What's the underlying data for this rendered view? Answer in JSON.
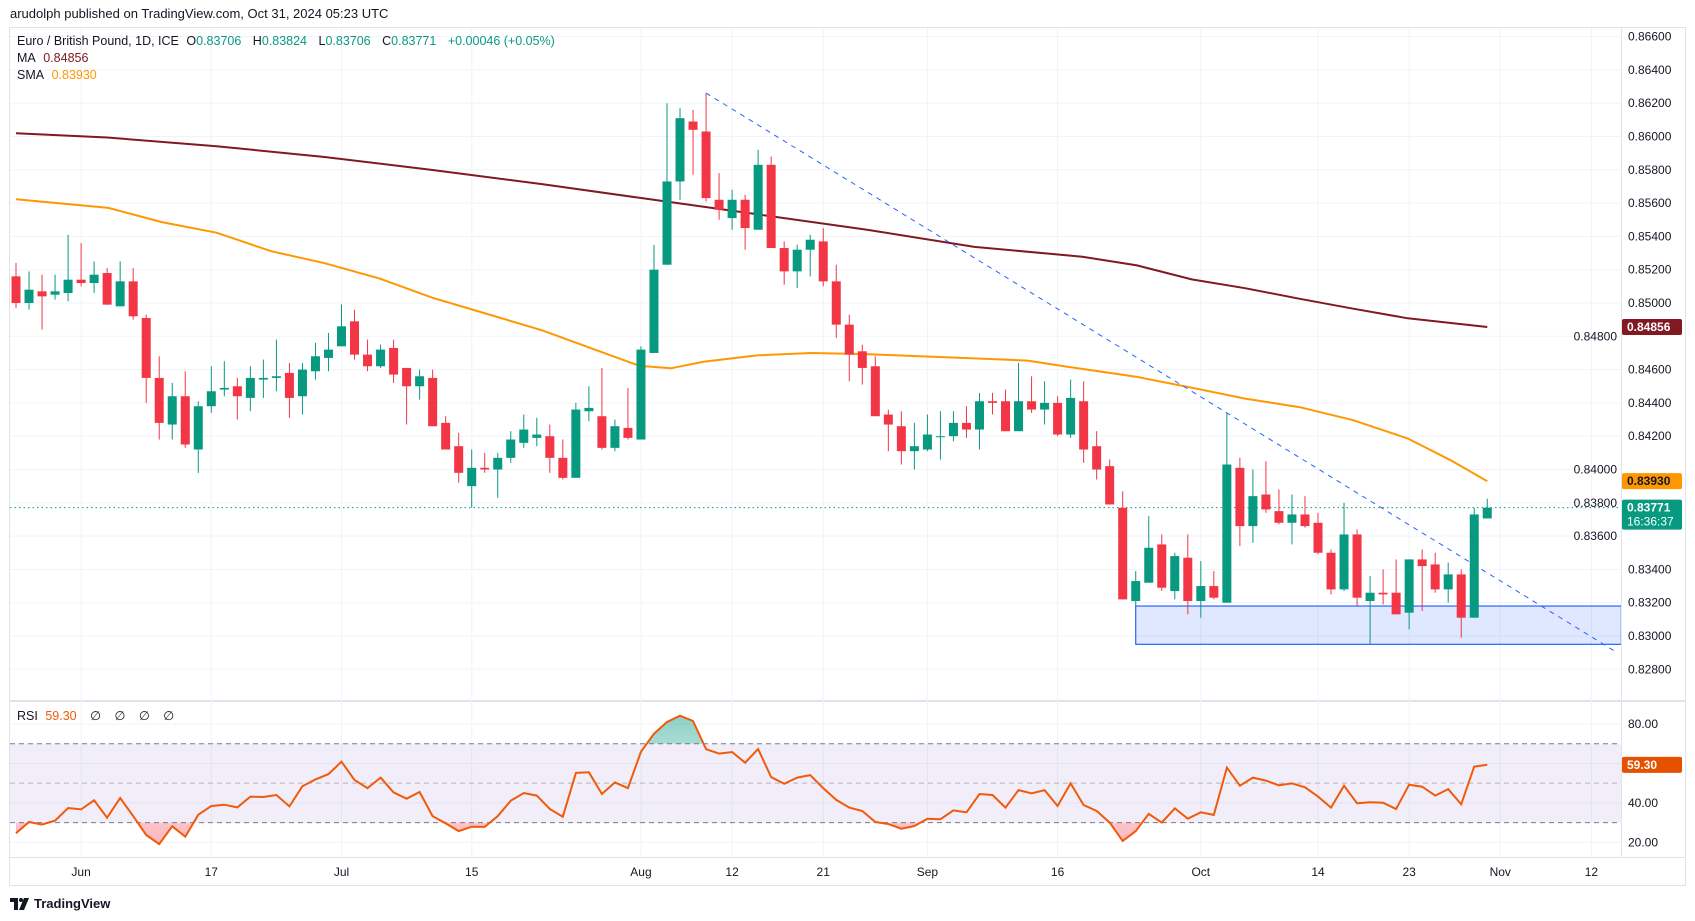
{
  "publish_line": "arudolph published on TradingView.com, Oct 31, 2024 05:23 UTC",
  "legend": {
    "symbol": "Euro / British Pound, 1D, ICE",
    "open_label": "O",
    "open": "0.83706",
    "high_label": "H",
    "high": "0.83824",
    "low_label": "L",
    "low": "0.83706",
    "close_label": "C",
    "close": "0.83771",
    "change": "+0.00046 (+0.05%)",
    "ma_label": "MA",
    "ma_value": "0.84856",
    "sma_label": "SMA",
    "sma_value": "0.83930"
  },
  "rsi_legend": {
    "label": "RSI",
    "value": "59.30",
    "na": [
      "∅",
      "∅",
      "∅",
      "∅"
    ]
  },
  "price_tags": {
    "ma": "0.84856",
    "sma": "0.83930",
    "last": "0.83771",
    "countdown": "16:36:37",
    "rsi": "59.30"
  },
  "logo_text": "TradingView",
  "colors": {
    "up": "#089981",
    "down": "#F23645",
    "ma": "#801922",
    "sma": "#FF9800",
    "rsi": "#F05A0A",
    "drawing": "#2962FF"
  },
  "chart_data": {
    "type": "candlestick",
    "symbol": "EURGBP",
    "interval": "1D",
    "price_axis": {
      "range": [
        0.826,
        0.867
      ],
      "ticks": [
        "0.82800",
        "0.83000",
        "0.83200",
        "0.83400",
        "0.83600",
        "0.83800",
        "0.84000",
        "0.84200",
        "0.84400",
        "0.84600",
        "0.84800",
        "0.85000",
        "0.85200",
        "0.85400",
        "0.85600",
        "0.85800",
        "0.86000",
        "0.86200",
        "0.86400",
        "0.86600"
      ]
    },
    "x_ticks": [
      {
        "label": "Jun",
        "index": 5
      },
      {
        "label": "17",
        "index": 15
      },
      {
        "label": "Jul",
        "index": 25
      },
      {
        "label": "15",
        "index": 35
      },
      {
        "label": "Aug",
        "index": 48
      },
      {
        "label": "12",
        "index": 55
      },
      {
        "label": "21",
        "index": 62
      },
      {
        "label": "Sep",
        "index": 70
      },
      {
        "label": "16",
        "index": 80
      },
      {
        "label": "Oct",
        "index": 91
      },
      {
        "label": "14",
        "index": 100
      },
      {
        "label": "23",
        "index": 107
      },
      {
        "label": "Nov",
        "index": 114
      },
      {
        "label": "12",
        "index": 121
      }
    ],
    "ohlc": [
      [
        0.8516,
        0.8524,
        0.8497,
        0.85
      ],
      [
        0.85,
        0.8519,
        0.8496,
        0.8508
      ],
      [
        0.8507,
        0.8517,
        0.8484,
        0.8504
      ],
      [
        0.8505,
        0.8517,
        0.8502,
        0.8507
      ],
      [
        0.8506,
        0.8541,
        0.8501,
        0.8514
      ],
      [
        0.8514,
        0.8536,
        0.851,
        0.8512
      ],
      [
        0.8512,
        0.8525,
        0.8506,
        0.8517
      ],
      [
        0.8518,
        0.8521,
        0.8499,
        0.8499
      ],
      [
        0.8498,
        0.8525,
        0.8498,
        0.8513
      ],
      [
        0.8513,
        0.8521,
        0.849,
        0.8492
      ],
      [
        0.8491,
        0.8493,
        0.844,
        0.8455
      ],
      [
        0.8455,
        0.8468,
        0.8418,
        0.8428
      ],
      [
        0.8427,
        0.8452,
        0.8418,
        0.8444
      ],
      [
        0.8444,
        0.8459,
        0.8413,
        0.8415
      ],
      [
        0.8412,
        0.8441,
        0.8398,
        0.8438
      ],
      [
        0.8438,
        0.8462,
        0.8434,
        0.8447
      ],
      [
        0.8448,
        0.8465,
        0.8444,
        0.8449
      ],
      [
        0.845,
        0.8455,
        0.843,
        0.8444
      ],
      [
        0.8443,
        0.8462,
        0.8435,
        0.8455
      ],
      [
        0.8454,
        0.8466,
        0.8443,
        0.8455
      ],
      [
        0.8455,
        0.8478,
        0.8447,
        0.8456
      ],
      [
        0.8458,
        0.8464,
        0.8431,
        0.8443
      ],
      [
        0.8444,
        0.8464,
        0.8433,
        0.846
      ],
      [
        0.8459,
        0.8476,
        0.8454,
        0.8468
      ],
      [
        0.8467,
        0.8482,
        0.8459,
        0.8472
      ],
      [
        0.8474,
        0.8499,
        0.8474,
        0.8486
      ],
      [
        0.8489,
        0.8496,
        0.8466,
        0.8469
      ],
      [
        0.8469,
        0.8478,
        0.8459,
        0.8462
      ],
      [
        0.8462,
        0.8475,
        0.8461,
        0.8472
      ],
      [
        0.8473,
        0.8478,
        0.8452,
        0.8457
      ],
      [
        0.8461,
        0.8461,
        0.8427,
        0.845
      ],
      [
        0.845,
        0.846,
        0.8442,
        0.8456
      ],
      [
        0.8455,
        0.846,
        0.8426,
        0.8426
      ],
      [
        0.8428,
        0.8432,
        0.8412,
        0.8412
      ],
      [
        0.8414,
        0.8422,
        0.8392,
        0.8398
      ],
      [
        0.839,
        0.8412,
        0.8377,
        0.8401
      ],
      [
        0.8401,
        0.841,
        0.8398,
        0.84
      ],
      [
        0.84,
        0.841,
        0.8383,
        0.8407
      ],
      [
        0.8407,
        0.8423,
        0.8404,
        0.8418
      ],
      [
        0.8416,
        0.8433,
        0.8413,
        0.8424
      ],
      [
        0.8419,
        0.8431,
        0.8414,
        0.8421
      ],
      [
        0.842,
        0.8427,
        0.8398,
        0.8407
      ],
      [
        0.8407,
        0.8418,
        0.8394,
        0.8395
      ],
      [
        0.8395,
        0.844,
        0.8395,
        0.8436
      ],
      [
        0.8435,
        0.845,
        0.8429,
        0.8437
      ],
      [
        0.8432,
        0.8461,
        0.8412,
        0.8413
      ],
      [
        0.8413,
        0.843,
        0.8411,
        0.8426
      ],
      [
        0.8425,
        0.8449,
        0.8418,
        0.8419
      ],
      [
        0.8418,
        0.8474,
        0.8418,
        0.8472
      ],
      [
        0.847,
        0.8535,
        0.847,
        0.852
      ],
      [
        0.8523,
        0.862,
        0.8523,
        0.8573
      ],
      [
        0.8573,
        0.8617,
        0.8562,
        0.8611
      ],
      [
        0.8609,
        0.8616,
        0.8577,
        0.8604
      ],
      [
        0.8603,
        0.8626,
        0.8561,
        0.8563
      ],
      [
        0.8562,
        0.8578,
        0.855,
        0.8556
      ],
      [
        0.8551,
        0.8568,
        0.8544,
        0.8562
      ],
      [
        0.8562,
        0.8565,
        0.8532,
        0.8545
      ],
      [
        0.8544,
        0.8592,
        0.8544,
        0.8583
      ],
      [
        0.8583,
        0.8588,
        0.8533,
        0.8533
      ],
      [
        0.8533,
        0.8537,
        0.8511,
        0.8519
      ],
      [
        0.8519,
        0.8535,
        0.8509,
        0.8532
      ],
      [
        0.8532,
        0.8541,
        0.8516,
        0.8538
      ],
      [
        0.8537,
        0.8545,
        0.851,
        0.8513
      ],
      [
        0.8513,
        0.8523,
        0.8479,
        0.8487
      ],
      [
        0.8487,
        0.8493,
        0.8453,
        0.8469
      ],
      [
        0.8471,
        0.8475,
        0.8451,
        0.8461
      ],
      [
        0.8462,
        0.8468,
        0.8432,
        0.8432
      ],
      [
        0.8433,
        0.8436,
        0.8411,
        0.8427
      ],
      [
        0.8426,
        0.8435,
        0.8403,
        0.8411
      ],
      [
        0.8411,
        0.8428,
        0.84,
        0.8414
      ],
      [
        0.8412,
        0.8433,
        0.8411,
        0.8421
      ],
      [
        0.842,
        0.8435,
        0.8406,
        0.842
      ],
      [
        0.842,
        0.8435,
        0.8417,
        0.8428
      ],
      [
        0.8428,
        0.8438,
        0.8419,
        0.8424
      ],
      [
        0.8424,
        0.8446,
        0.8412,
        0.8441
      ],
      [
        0.8441,
        0.8446,
        0.8433,
        0.844
      ],
      [
        0.8441,
        0.8448,
        0.8423,
        0.8423
      ],
      [
        0.8423,
        0.8464,
        0.8423,
        0.8441
      ],
      [
        0.8441,
        0.8456,
        0.8434,
        0.8436
      ],
      [
        0.8436,
        0.8453,
        0.8427,
        0.844
      ],
      [
        0.844,
        0.8444,
        0.842,
        0.8421
      ],
      [
        0.8421,
        0.8454,
        0.8419,
        0.8443
      ],
      [
        0.8441,
        0.8453,
        0.8404,
        0.8412
      ],
      [
        0.8414,
        0.8423,
        0.8394,
        0.84
      ],
      [
        0.8402,
        0.8406,
        0.8379,
        0.8379
      ],
      [
        0.8377,
        0.8387,
        0.8322,
        0.8322
      ],
      [
        0.8321,
        0.8339,
        0.8318,
        0.8333
      ],
      [
        0.8332,
        0.8372,
        0.8332,
        0.8353
      ],
      [
        0.8355,
        0.8361,
        0.8327,
        0.8329
      ],
      [
        0.8327,
        0.835,
        0.8322,
        0.8348
      ],
      [
        0.8347,
        0.8361,
        0.8313,
        0.8321
      ],
      [
        0.8321,
        0.8345,
        0.8311,
        0.833
      ],
      [
        0.833,
        0.8339,
        0.8322,
        0.8323
      ],
      [
        0.832,
        0.8434,
        0.832,
        0.8403
      ],
      [
        0.8401,
        0.8407,
        0.8354,
        0.8366
      ],
      [
        0.8366,
        0.84,
        0.8356,
        0.8384
      ],
      [
        0.8385,
        0.8405,
        0.8374,
        0.8376
      ],
      [
        0.8375,
        0.8388,
        0.8367,
        0.8368
      ],
      [
        0.8368,
        0.8385,
        0.8355,
        0.8373
      ],
      [
        0.8373,
        0.8384,
        0.8365,
        0.8366
      ],
      [
        0.8368,
        0.8374,
        0.8349,
        0.835
      ],
      [
        0.835,
        0.8352,
        0.8325,
        0.8328
      ],
      [
        0.8328,
        0.838,
        0.8327,
        0.8361
      ],
      [
        0.8361,
        0.8364,
        0.8318,
        0.8323
      ],
      [
        0.8321,
        0.8336,
        0.8295,
        0.8326
      ],
      [
        0.8326,
        0.834,
        0.8319,
        0.8325
      ],
      [
        0.8326,
        0.8346,
        0.8313,
        0.8313
      ],
      [
        0.8314,
        0.8346,
        0.8304,
        0.8346
      ],
      [
        0.8346,
        0.8352,
        0.8315,
        0.8342
      ],
      [
        0.8343,
        0.835,
        0.8326,
        0.8328
      ],
      [
        0.8328,
        0.8344,
        0.832,
        0.8337
      ],
      [
        0.8337,
        0.834,
        0.8299,
        0.8311
      ],
      [
        0.8311,
        0.8377,
        0.8311,
        0.8373
      ],
      [
        0.83706,
        0.83824,
        0.83706,
        0.83771
      ]
    ],
    "ma": {
      "name": "MA",
      "points": [
        [
          0,
          0.8602
        ],
        [
          7,
          0.85994
        ],
        [
          15.4,
          0.85942
        ],
        [
          23.7,
          0.85877
        ],
        [
          32,
          0.85799
        ],
        [
          40.4,
          0.85714
        ],
        [
          48.7,
          0.85623
        ],
        [
          57,
          0.85532
        ],
        [
          65.3,
          0.85441
        ],
        [
          73.6,
          0.85337
        ],
        [
          81.9,
          0.85278
        ],
        [
          86.1,
          0.85226
        ],
        [
          90.3,
          0.85142
        ],
        [
          94.4,
          0.85089
        ],
        [
          98.6,
          0.85025
        ],
        [
          102.7,
          0.84966
        ],
        [
          106.9,
          0.84908
        ],
        [
          113,
          0.84856
        ]
      ]
    },
    "sma": {
      "name": "SMA",
      "points": [
        [
          0,
          0.85623
        ],
        [
          7.1,
          0.85571
        ],
        [
          11.2,
          0.85486
        ],
        [
          15.4,
          0.85422
        ],
        [
          19.6,
          0.85311
        ],
        [
          23.7,
          0.85239
        ],
        [
          27.9,
          0.85148
        ],
        [
          32,
          0.85031
        ],
        [
          36.2,
          0.84934
        ],
        [
          40.4,
          0.84836
        ],
        [
          44.5,
          0.84719
        ],
        [
          47.9,
          0.84622
        ],
        [
          50.3,
          0.84608
        ],
        [
          52.8,
          0.84647
        ],
        [
          57,
          0.84686
        ],
        [
          61.1,
          0.847
        ],
        [
          65.3,
          0.84693
        ],
        [
          69.4,
          0.8468
        ],
        [
          73.6,
          0.84667
        ],
        [
          77.7,
          0.84654
        ],
        [
          80.3,
          0.84622
        ],
        [
          86.1,
          0.84556
        ],
        [
          90.3,
          0.84491
        ],
        [
          94.4,
          0.84426
        ],
        [
          98.6,
          0.84374
        ],
        [
          102.7,
          0.84296
        ],
        [
          106.9,
          0.84186
        ],
        [
          110.2,
          0.84055
        ],
        [
          113,
          0.8393
        ]
      ]
    },
    "trendline": {
      "from": [
        53,
        0.86261
      ],
      "to": [
        122.9,
        0.82904
      ],
      "style": "dashed"
    },
    "support_zone": {
      "from_index": 86,
      "to_index": 123.3,
      "top": 0.8318,
      "bottom": 0.8295
    },
    "last_price": 0.83771,
    "rsi": {
      "name": "RSI",
      "range": [
        15,
        88
      ],
      "ticks": [
        "80.00",
        "40.00",
        "20.00"
      ],
      "bands": [
        70,
        50,
        30
      ],
      "values": [
        24.6,
        30.3,
        29.0,
        31.0,
        37.4,
        36.7,
        41.3,
        32.5,
        42.5,
        33.3,
        23.7,
        19.1,
        28.1,
        22.9,
        34.0,
        38.4,
        39.1,
        37.7,
        43.2,
        43.0,
        44.0,
        38.2,
        48.4,
        51.9,
        54.6,
        60.9,
        51.6,
        47.5,
        52.8,
        45.3,
        42.1,
        45.5,
        33.3,
        29.6,
        25.7,
        27.9,
        27.8,
        33.3,
        41.1,
        45.0,
        43.7,
        36.9,
        33.0,
        55.2,
        55.5,
        44.5,
        50.4,
        47.5,
        66.0,
        75.1,
        81.0,
        84.2,
        81.5,
        67.2,
        65.0,
        65.8,
        60.4,
        67.3,
        53.0,
        49.7,
        52.8,
        54.1,
        47.5,
        41.5,
        37.6,
        35.9,
        30.3,
        29.3,
        26.9,
        28.3,
        32.0,
        31.7,
        36.2,
        35.2,
        44.5,
        44.0,
        37.6,
        46.5,
        44.8,
        46.5,
        38.4,
        49.9,
        38.9,
        35.9,
        30.0,
        20.7,
        25.7,
        34.4,
        30.0,
        37.2,
        32.0,
        35.2,
        33.9,
        57.9,
        48.7,
        52.8,
        51.3,
        48.9,
        49.9,
        47.9,
        43.2,
        37.6,
        48.7,
        39.8,
        40.3,
        40.1,
        36.9,
        49.2,
        48.2,
        43.7,
        47.0,
        39.3,
        58.4,
        59.3
      ]
    }
  }
}
